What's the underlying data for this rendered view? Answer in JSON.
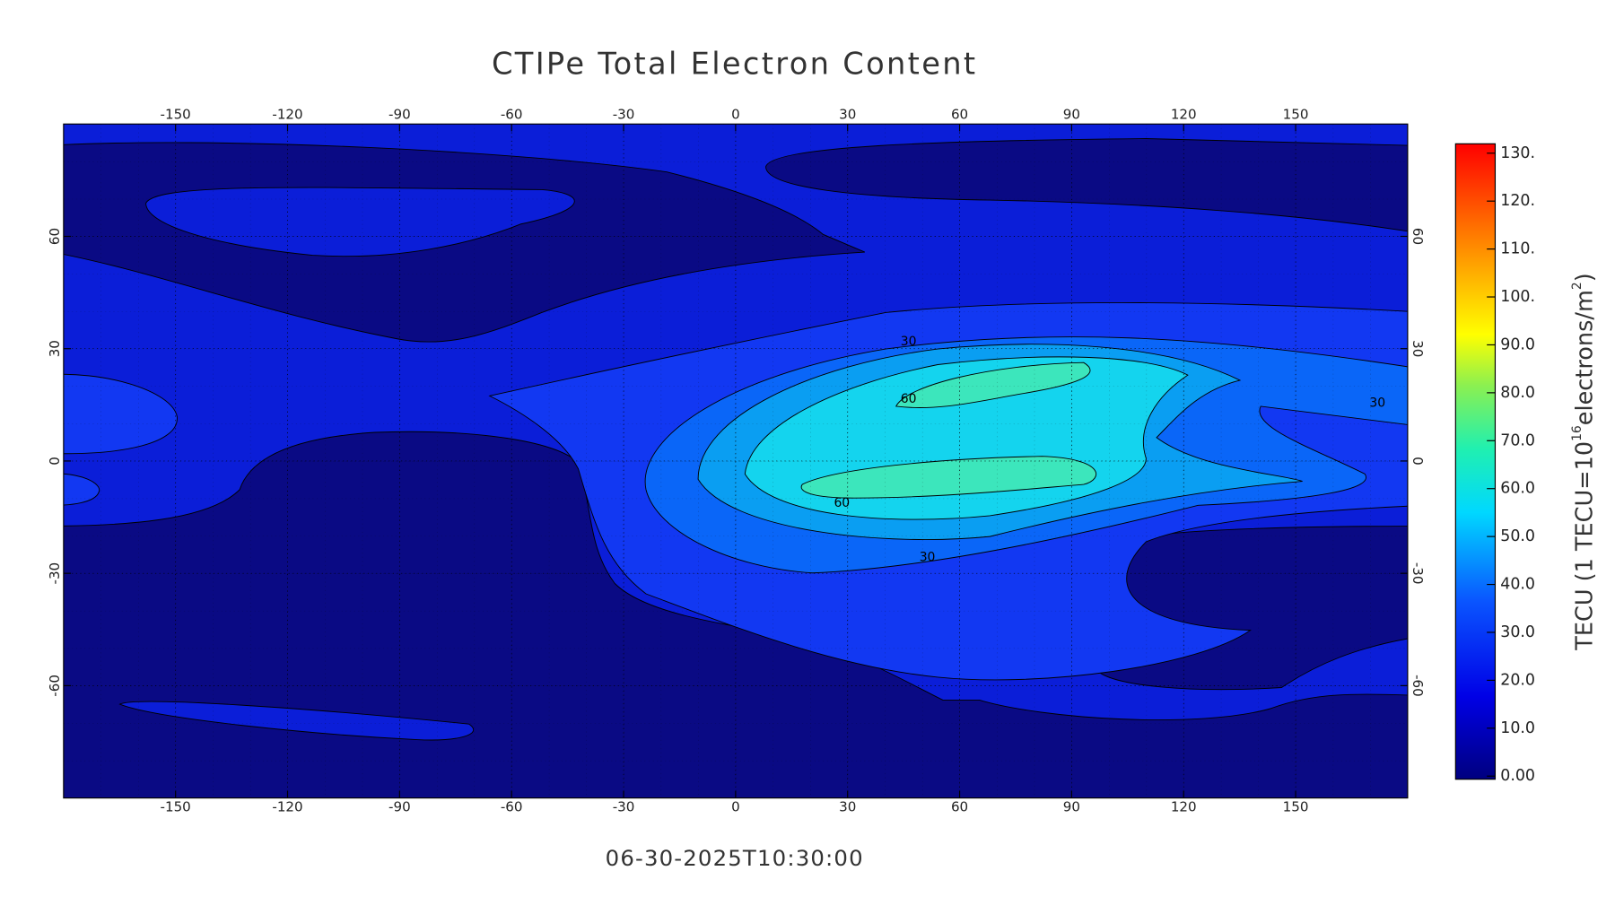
{
  "chart_data": {
    "type": "contour",
    "title": "CTIPe Total Electron Content",
    "timestamp": "06-30-2025T10:30:00",
    "xlim": [
      -180,
      180
    ],
    "ylim": [
      -90,
      90
    ],
    "xticks": [
      -150,
      -120,
      -90,
      -60,
      -30,
      0,
      30,
      60,
      90,
      120,
      150
    ],
    "yticks": [
      -60,
      -30,
      0,
      30,
      60
    ],
    "grid": true,
    "contour_labels": [
      30,
      60,
      60,
      30,
      30
    ],
    "colorbar": {
      "label": [
        "TECU (1 TECU=10",
        "16",
        "electrons/m",
        "2",
        ")"
      ],
      "lim": [
        0,
        130
      ],
      "ticks": [
        {
          "value": 0,
          "label": "0.00"
        },
        {
          "value": 10,
          "label": "10.0"
        },
        {
          "value": 20,
          "label": "20.0"
        },
        {
          "value": 30,
          "label": "30.0"
        },
        {
          "value": 40,
          "label": "40.0"
        },
        {
          "value": 50,
          "label": "50.0"
        },
        {
          "value": 60,
          "label": "60.0"
        },
        {
          "value": 70,
          "label": "70.0"
        },
        {
          "value": 80,
          "label": "80.0"
        },
        {
          "value": 90,
          "label": "90.0"
        },
        {
          "value": 100,
          "label": "100."
        },
        {
          "value": 110,
          "label": "110."
        },
        {
          "value": 120,
          "label": "120."
        },
        {
          "value": 130,
          "label": "130."
        }
      ]
    }
  }
}
